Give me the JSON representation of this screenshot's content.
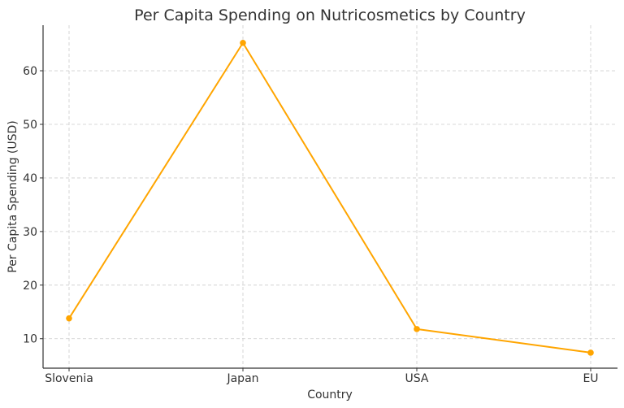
{
  "chart_data": {
    "type": "line",
    "title": "Per Capita Spending on Nutricosmetics by Country",
    "xlabel": "Country",
    "ylabel": "Per Capita Spending (USD)",
    "categories": [
      "Slovenia",
      "Japan",
      "USA",
      "EU"
    ],
    "series": [
      {
        "values": [
          13.8,
          65.2,
          11.8,
          7.4
        ]
      }
    ],
    "ylim": [
      4.5,
      68.5
    ],
    "yticks": [
      10,
      20,
      30,
      40,
      50,
      60
    ],
    "grid": true,
    "line_color": "#FFA500"
  }
}
